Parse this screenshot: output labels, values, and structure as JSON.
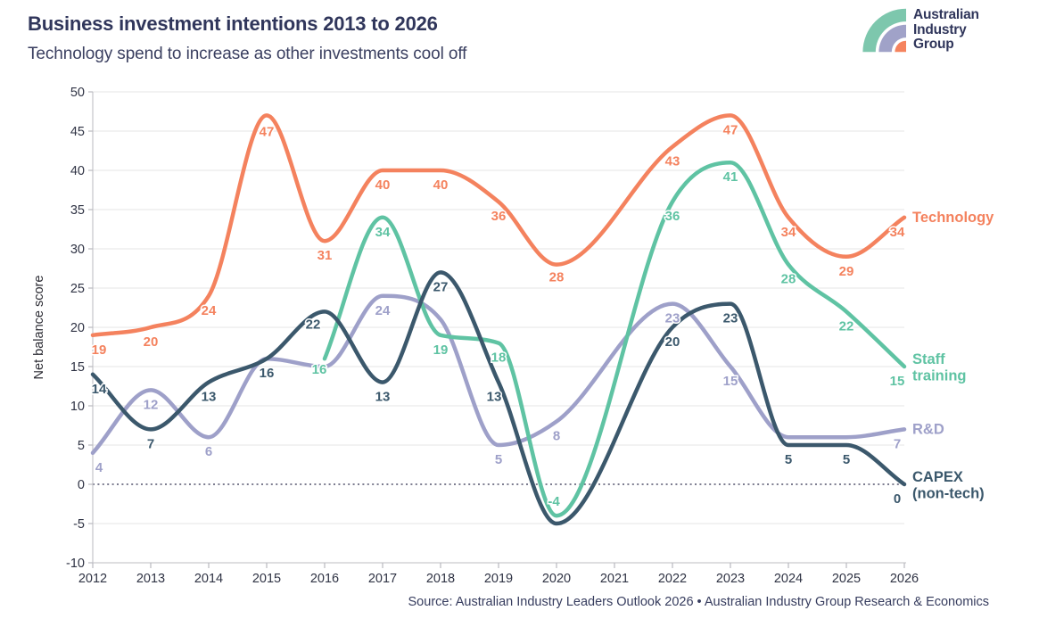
{
  "header": {
    "title": "Business investment intentions 2013 to 2026",
    "subtitle": "Technology spend to increase as other investments cool off"
  },
  "logo": {
    "lines": [
      "Australian",
      "Industry",
      "Group"
    ],
    "colors": {
      "teal": "#7dc7ad",
      "purple": "#a0a2c8",
      "orange": "#f5835e",
      "text": "#30365b"
    }
  },
  "source": "Source: Australian Industry Leaders Outlook 2026 • Australian Industry Group Research & Economics",
  "chart_data": {
    "type": "line",
    "title": "Business investment intentions 2013 to 2026",
    "xlabel": "",
    "ylabel": "Net balance score",
    "ylim": [
      -10,
      50
    ],
    "ytick_step": 5,
    "grid": true,
    "zero_line": "dotted",
    "legend_position": "right-of-line-end",
    "x": [
      2012,
      2013,
      2014,
      2015,
      2016,
      2017,
      2018,
      2019,
      2020,
      2021,
      2022,
      2023,
      2024,
      2025,
      2026
    ],
    "series": [
      {
        "name": "Technology",
        "legend_lines": [
          "Technology"
        ],
        "color": "#f4825e",
        "values": [
          19,
          20,
          24,
          47,
          31,
          40,
          40,
          36,
          28,
          null,
          43,
          47,
          34,
          29,
          34
        ],
        "point_labels": [
          "19",
          "20",
          "24",
          "47",
          "31",
          "40",
          "40",
          "36",
          "28",
          null,
          "43",
          "47",
          "34",
          "29",
          "34"
        ]
      },
      {
        "name": "Staff training",
        "legend_lines": [
          "Staff",
          "training"
        ],
        "color": "#5fc3a3",
        "values": [
          null,
          null,
          null,
          null,
          16,
          34,
          19,
          18,
          -4,
          null,
          36,
          41,
          28,
          22,
          15
        ],
        "point_labels": [
          null,
          null,
          null,
          null,
          "16",
          "34",
          "19",
          "18",
          "-4",
          null,
          "36",
          "41",
          "28",
          "22",
          "15"
        ]
      },
      {
        "name": "R&D",
        "legend_lines": [
          "R&D"
        ],
        "color": "#9ea0c9",
        "values": [
          4,
          12,
          6,
          16,
          15,
          24,
          21,
          5,
          8,
          null,
          23,
          15,
          6,
          6,
          7
        ],
        "point_labels": [
          "4",
          "12",
          "6",
          null,
          null,
          "24",
          null,
          "5",
          "8",
          null,
          "23",
          "15",
          null,
          null,
          "7"
        ]
      },
      {
        "name": "CAPEX (non-tech)",
        "legend_lines": [
          "CAPEX",
          "(non-tech)"
        ],
        "color": "#3b586c",
        "values": [
          14,
          7,
          13,
          16,
          22,
          13,
          27,
          13,
          -5,
          null,
          20,
          23,
          5,
          5,
          0
        ],
        "point_labels": [
          "14",
          "7",
          "13",
          "16",
          "22",
          "13",
          "27",
          "13",
          null,
          null,
          "20",
          "23",
          "5",
          "5",
          "0"
        ]
      }
    ]
  }
}
